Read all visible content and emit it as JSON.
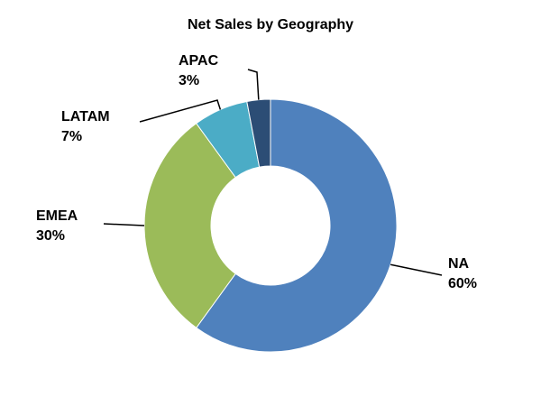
{
  "chart_data": {
    "type": "donut",
    "title": "Net Sales by Geography",
    "categories": [
      "NA",
      "EMEA",
      "LATAM",
      "APAC"
    ],
    "values": [
      60,
      30,
      7,
      3
    ],
    "value_labels": [
      "60%",
      "30%",
      "7%",
      "3%"
    ],
    "colors": [
      "#4f81bd",
      "#9bbb59",
      "#4bacc6",
      "#2c4d75"
    ]
  }
}
